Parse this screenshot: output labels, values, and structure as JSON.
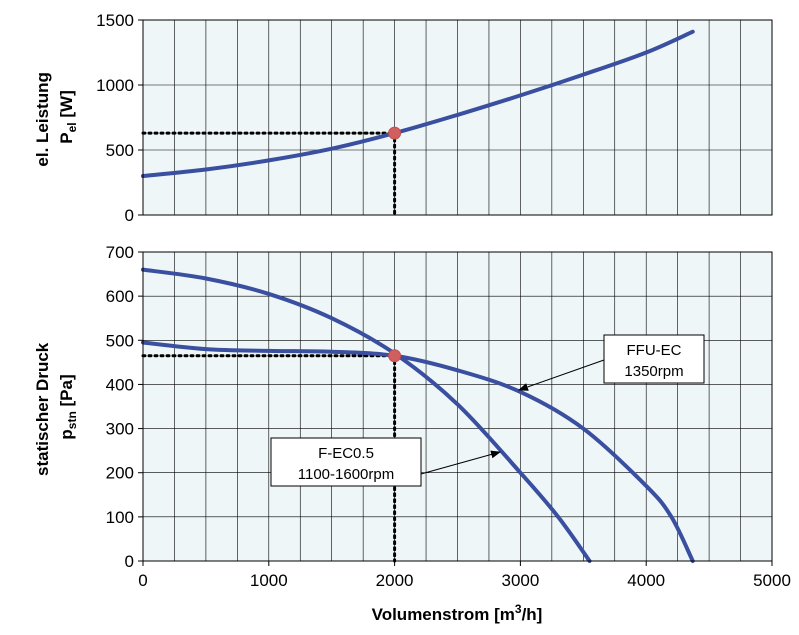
{
  "chart_data": [
    {
      "type": "line",
      "ylabel_main": "el. Leistung",
      "ylabel_sym": "P",
      "ylabel_sub": "el",
      "ylabel_unit": " [W]",
      "xlim": [
        0,
        5000
      ],
      "ylim": [
        0,
        1500
      ],
      "yticks": [
        "0",
        "500",
        "1000",
        "1500"
      ],
      "grid": true,
      "series": [
        {
          "color": "#3a4fa0",
          "x": [
            0,
            500,
            1000,
            1500,
            2000,
            2500,
            3000,
            3500,
            4000,
            4370
          ],
          "y": [
            300,
            350,
            420,
            510,
            630,
            770,
            920,
            1080,
            1250,
            1410
          ]
        }
      ],
      "operating_point": {
        "x": 2000,
        "y": 630
      }
    },
    {
      "type": "line",
      "ylabel_main": "statischer Druck",
      "ylabel_sym": "p",
      "ylabel_sub": "stn",
      "ylabel_unit": " [Pa]",
      "xlabel_main": "Volumenstrom [m",
      "xlabel_sup": "3",
      "xlabel_end": "/h]",
      "xlim": [
        0,
        5000
      ],
      "ylim": [
        0,
        700
      ],
      "xticks": [
        "0",
        "1000",
        "2000",
        "3000",
        "4000",
        "5000"
      ],
      "yticks": [
        "0",
        "100",
        "200",
        "300",
        "400",
        "500",
        "600",
        "700"
      ],
      "grid": true,
      "series": [
        {
          "color": "#3a4fa0",
          "x": [
            0,
            500,
            1000,
            1500,
            2000,
            2500,
            3000,
            3500,
            4000,
            4200,
            4370
          ],
          "y": [
            495,
            480,
            476,
            474,
            465,
            432,
            383,
            300,
            170,
            100,
            0
          ]
        },
        {
          "color": "#3a4fa0",
          "x": [
            0,
            500,
            1000,
            1500,
            2000,
            2500,
            3000,
            3300,
            3550
          ],
          "y": [
            660,
            640,
            605,
            550,
            470,
            355,
            200,
            100,
            0
          ]
        }
      ],
      "operating_point": {
        "x": 2000,
        "y": 465
      },
      "annotations": [
        {
          "line1": "FFU-EC",
          "line2": "1350rpm"
        },
        {
          "line1": "F-EC0.5",
          "line2": "1100-1600rpm"
        }
      ]
    }
  ]
}
